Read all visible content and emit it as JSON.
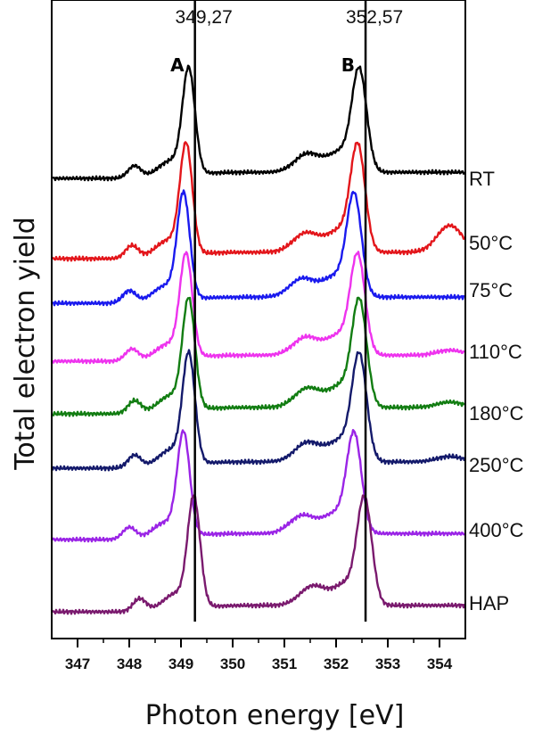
{
  "chart_data": {
    "type": "line",
    "title": "",
    "xlabel": "Photon energy [eV]",
    "ylabel": "Total electron yield",
    "xlim": [
      346.5,
      354.5
    ],
    "x_ticks": [
      347,
      348,
      349,
      350,
      351,
      352,
      353,
      354
    ],
    "x_tick_labels": [
      "347",
      "348",
      "349",
      "350",
      "351",
      "352",
      "353",
      "354"
    ],
    "y_ticks": "none",
    "grid": false,
    "reference_lines": [
      {
        "letter": "A",
        "value_label": "349,27",
        "x": 349.27
      },
      {
        "letter": "B",
        "value_label": "352,57",
        "x": 352.57
      }
    ],
    "series": [
      {
        "name": "RT",
        "color": "#000000",
        "baseline": 0.0,
        "peakA": 349.15,
        "peakB": 352.45,
        "ampA": 1.0,
        "ampB": 1.0,
        "endLevel": 0.0
      },
      {
        "name": "50°C",
        "color": "#e3161b",
        "baseline": 0.0,
        "peakA": 349.1,
        "peakB": 352.42,
        "ampA": 1.0,
        "ampB": 1.0,
        "endLevel": 0.25
      },
      {
        "name": "75°C",
        "color": "#1a1aee",
        "baseline": 0.0,
        "peakA": 349.05,
        "peakB": 352.35,
        "ampA": 1.0,
        "ampB": 1.0,
        "endLevel": 0.0
      },
      {
        "name": "110°C",
        "color": "#ee33ee",
        "baseline": 0.0,
        "peakA": 349.1,
        "peakB": 352.42,
        "ampA": 1.0,
        "ampB": 1.0,
        "endLevel": 0.05
      },
      {
        "name": "180°C",
        "color": "#127d12",
        "baseline": 0.0,
        "peakA": 349.15,
        "peakB": 352.45,
        "ampA": 1.0,
        "ampB": 1.0,
        "endLevel": 0.05
      },
      {
        "name": "250°C",
        "color": "#141a6b",
        "baseline": 0.0,
        "peakA": 349.15,
        "peakB": 352.45,
        "ampA": 1.0,
        "ampB": 1.0,
        "endLevel": 0.05
      },
      {
        "name": "400°C",
        "color": "#9a24e6",
        "baseline": 0.0,
        "peakA": 349.05,
        "peakB": 352.35,
        "ampA": 1.0,
        "ampB": 1.0,
        "endLevel": 0.0
      },
      {
        "name": "HAP",
        "color": "#7a1a6e",
        "baseline": 0.0,
        "peakA": 349.25,
        "peakB": 352.55,
        "ampA": 1.0,
        "ampB": 1.0,
        "endLevel": 0.0
      }
    ]
  }
}
